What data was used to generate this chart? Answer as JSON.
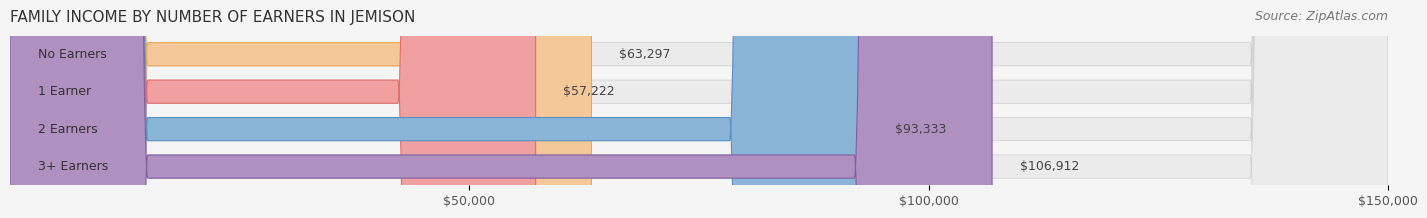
{
  "title": "FAMILY INCOME BY NUMBER OF EARNERS IN JEMISON",
  "source": "Source: ZipAtlas.com",
  "categories": [
    "No Earners",
    "1 Earner",
    "2 Earners",
    "3+ Earners"
  ],
  "values": [
    63297,
    57222,
    93333,
    106912
  ],
  "bar_colors": [
    "#f5c899",
    "#f0a0a0",
    "#8ab4d8",
    "#b090c0"
  ],
  "bar_edge_colors": [
    "#e8a860",
    "#e07070",
    "#5a90c0",
    "#8060a0"
  ],
  "label_colors": [
    "#c08030",
    "#c05050",
    "#3060a0",
    "#604080"
  ],
  "value_labels": [
    "$63,297",
    "$57,222",
    "$93,333",
    "$106,912"
  ],
  "xlim": [
    0,
    150000
  ],
  "xticks": [
    50000,
    100000,
    150000
  ],
  "xtick_labels": [
    "$50,000",
    "$100,000",
    "$150,000"
  ],
  "bg_color": "#f5f5f5",
  "bar_bg_color": "#ebebeb",
  "title_fontsize": 11,
  "source_fontsize": 9,
  "label_fontsize": 9,
  "value_fontsize": 9,
  "tick_fontsize": 9
}
